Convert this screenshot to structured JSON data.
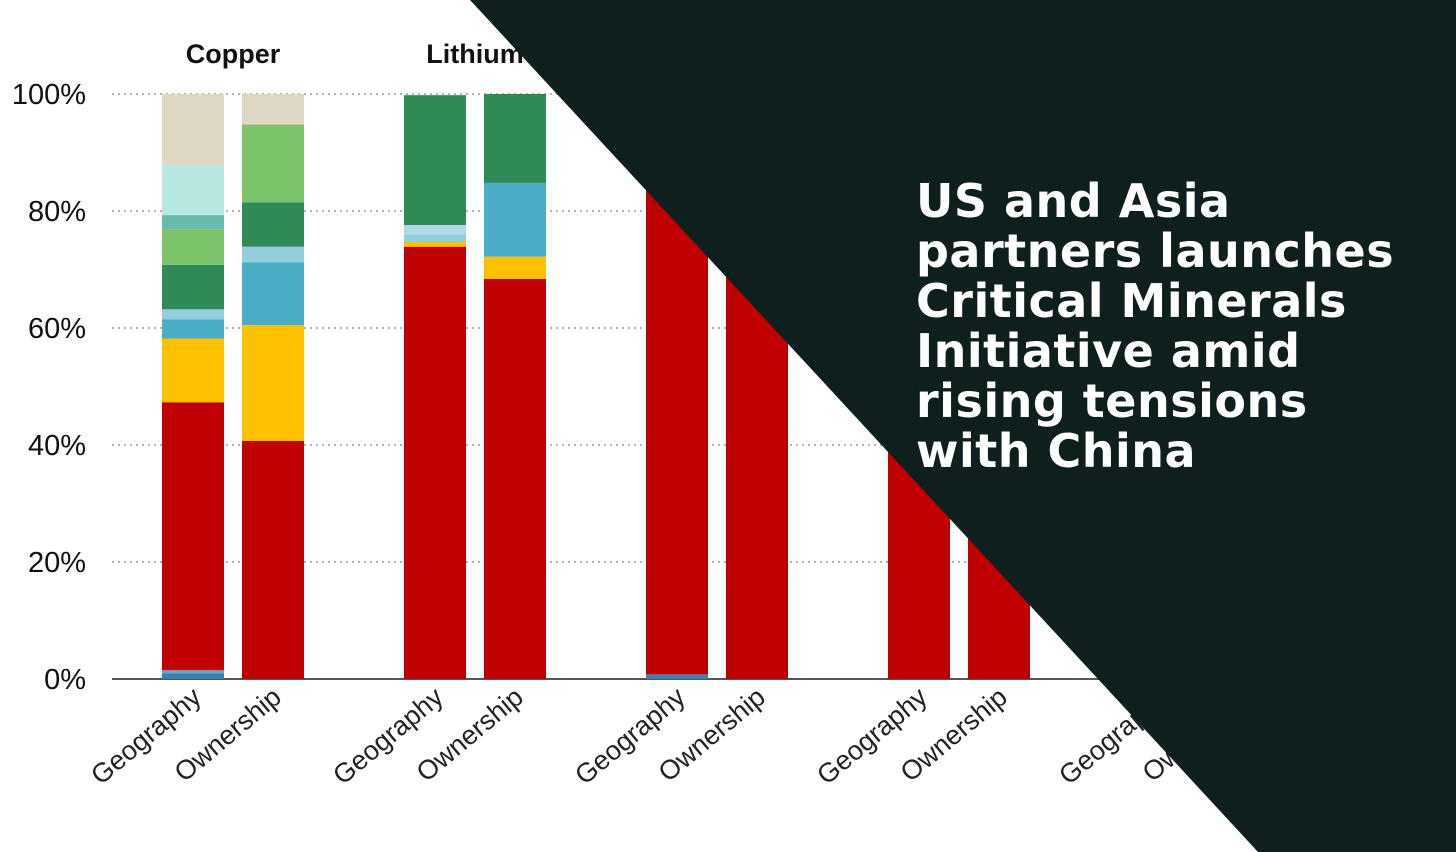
{
  "chart_data": {
    "type": "bar",
    "stacked": true,
    "ylim": [
      0,
      100
    ],
    "y_ticks": [
      "0%",
      "20%",
      "40%",
      "60%",
      "80%",
      "100%"
    ],
    "grid": true,
    "groups": [
      {
        "title": "Copper",
        "bars": [
          {
            "label": "Geography",
            "segments": [
              {
                "value": 1.0,
                "color": "#3d7fb0"
              },
              {
                "value": 0.5,
                "color": "#5aaed0"
              },
              {
                "value": 45.8,
                "color": "#c00000"
              },
              {
                "value": 10.9,
                "color": "#ffc000"
              },
              {
                "value": 3.3,
                "color": "#4bacc6"
              },
              {
                "value": 1.7,
                "color": "#92cddc"
              },
              {
                "value": 7.6,
                "color": "#2e8b57"
              },
              {
                "value": 6.1,
                "color": "#7cc46a"
              },
              {
                "value": 2.4,
                "color": "#66bbaa"
              },
              {
                "value": 8.6,
                "color": "#b7e8e0"
              },
              {
                "value": 12.1,
                "color": "#ddd8c4"
              }
            ]
          },
          {
            "label": "Ownership",
            "segments": [
              {
                "value": 40.7,
                "color": "#c00000"
              },
              {
                "value": 19.8,
                "color": "#ffc000"
              },
              {
                "value": 10.7,
                "color": "#4bacc6"
              },
              {
                "value": 2.7,
                "color": "#92cddc"
              },
              {
                "value": 7.6,
                "color": "#2e8b57"
              },
              {
                "value": 13.3,
                "color": "#7cc46a"
              },
              {
                "value": 5.2,
                "color": "#ddd8c4"
              }
            ]
          }
        ]
      },
      {
        "title": "Lithium",
        "bars": [
          {
            "label": "Geography",
            "segments": [
              {
                "value": 73.9,
                "color": "#c00000"
              },
              {
                "value": 0.8,
                "color": "#ffc000"
              },
              {
                "value": 1.2,
                "color": "#92cddc"
              },
              {
                "value": 1.7,
                "color": "#b0d8e8"
              },
              {
                "value": 22.2,
                "color": "#2e8b57"
              }
            ]
          },
          {
            "label": "Ownership",
            "segments": [
              {
                "value": 68.4,
                "color": "#c00000"
              },
              {
                "value": 3.8,
                "color": "#ffc000"
              },
              {
                "value": 12.6,
                "color": "#4bacc6"
              },
              {
                "value": 15.2,
                "color": "#2e8b57"
              }
            ]
          }
        ]
      },
      {
        "title": "",
        "bars": [
          {
            "label": "Geography",
            "segments": [
              {
                "value": 0.8,
                "color": "#3d7fb0"
              },
              {
                "value": 99.2,
                "color": "#c00000"
              }
            ]
          },
          {
            "label": "Ownership",
            "segments": [
              {
                "value": 100,
                "color": "#c00000"
              }
            ]
          }
        ]
      },
      {
        "title": "",
        "bars": [
          {
            "label": "Geography",
            "segments": [
              {
                "value": 100,
                "color": "#c00000"
              }
            ]
          },
          {
            "label": "Ownership",
            "segments": [
              {
                "value": 100,
                "color": "#c00000"
              }
            ]
          }
        ]
      },
      {
        "title": "",
        "bars": [
          {
            "label": "Geography",
            "segments": []
          },
          {
            "label": "Ownership",
            "segments": []
          }
        ]
      }
    ]
  },
  "headline": {
    "lines": [
      "US and Asia",
      "partners launches",
      "Critical Minerals",
      "Initiative amid",
      "rising tensions",
      "with China"
    ]
  },
  "colors": {
    "overlay": "#0f1f1d",
    "grid": "#9a9a9a",
    "axis": "#555555"
  }
}
